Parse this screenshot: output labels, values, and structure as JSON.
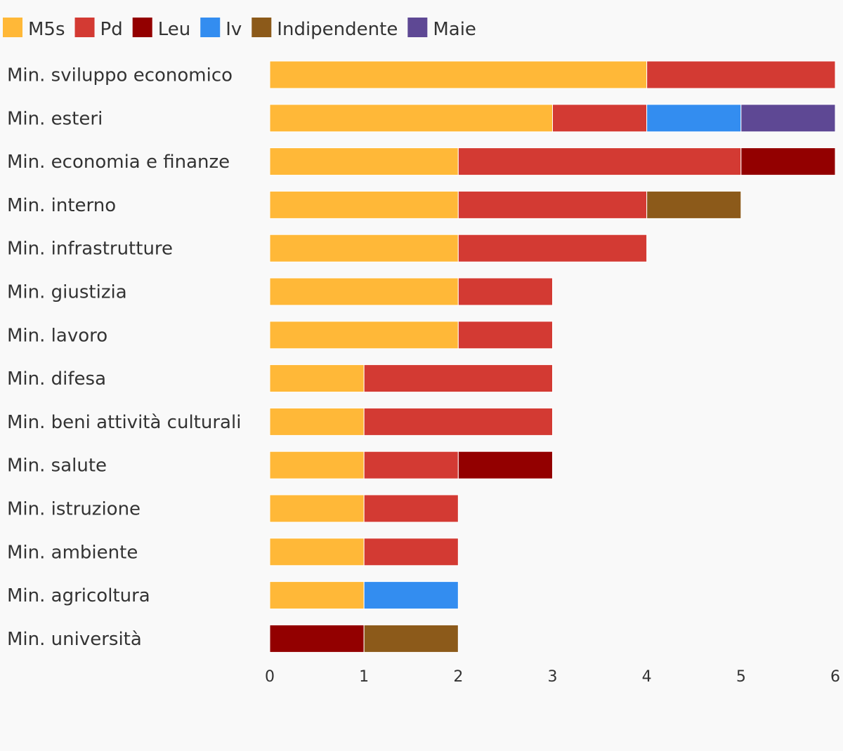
{
  "chart_data": {
    "type": "bar",
    "orientation": "horizontal",
    "stacked": true,
    "title": "",
    "xlabel": "",
    "ylabel": "",
    "xlim": [
      0,
      6
    ],
    "xticks": [
      "0",
      "1",
      "2",
      "3",
      "4",
      "5",
      "6"
    ],
    "legend_position": "top-left",
    "grid": false,
    "categories": [
      "Min. sviluppo economico",
      "Min. esteri",
      "Min. economia e finanze",
      "Min. interno",
      "Min. infrastrutture",
      "Min. giustizia",
      "Min. lavoro",
      "Min. difesa",
      "Min. beni attività culturali",
      "Min. salute",
      "Min. istruzione",
      "Min. ambiente",
      "Min. agricoltura",
      "Min. università"
    ],
    "series": [
      {
        "name": "M5s",
        "color": "#ffb838",
        "values": [
          4,
          3,
          2,
          2,
          2,
          2,
          2,
          1,
          1,
          1,
          1,
          1,
          1,
          0
        ]
      },
      {
        "name": "Pd",
        "color": "#d33a33",
        "values": [
          2,
          1,
          3,
          2,
          2,
          1,
          1,
          2,
          2,
          1,
          1,
          1,
          0,
          0
        ]
      },
      {
        "name": "Leu",
        "color": "#930000",
        "values": [
          0,
          0,
          1,
          0,
          0,
          0,
          0,
          0,
          0,
          1,
          0,
          0,
          0,
          1
        ]
      },
      {
        "name": "Iv",
        "color": "#338df0",
        "values": [
          0,
          1,
          0,
          0,
          0,
          0,
          0,
          0,
          0,
          0,
          0,
          0,
          1,
          0
        ]
      },
      {
        "name": "Indipendente",
        "color": "#8c5a1a",
        "values": [
          0,
          0,
          0,
          1,
          0,
          0,
          0,
          0,
          0,
          0,
          0,
          0,
          0,
          1
        ]
      },
      {
        "name": "Maie",
        "color": "#5e4894",
        "values": [
          0,
          1,
          0,
          0,
          0,
          0,
          0,
          0,
          0,
          0,
          0,
          0,
          0,
          0
        ]
      }
    ]
  }
}
